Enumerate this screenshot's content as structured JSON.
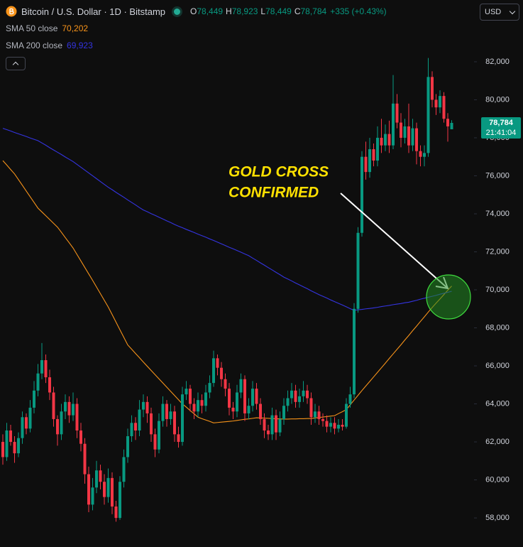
{
  "header": {
    "title": "Bitcoin / U.S. Dollar · 1D · Bitstamp",
    "ohlc": [
      {
        "label": "O",
        "value": "78,449"
      },
      {
        "label": "H",
        "value": "78,923"
      },
      {
        "label": "L",
        "value": "78,449"
      },
      {
        "label": "C",
        "value": "78,784"
      }
    ],
    "change": "+335 (+0.43%)",
    "currency": "USD"
  },
  "chart_data": {
    "type": "candlestick",
    "up_color": "#089981",
    "down_color": "#f23645",
    "ylim": [
      56470,
      85250
    ],
    "yticks": [
      {
        "value": 58000,
        "label": "58,000"
      },
      {
        "value": 60000,
        "label": "60,000"
      },
      {
        "value": 62000,
        "label": "62,000"
      },
      {
        "value": 64000,
        "label": "64,000"
      },
      {
        "value": 66000,
        "label": "66,000"
      },
      {
        "value": 68000,
        "label": "68,000"
      },
      {
        "value": 70000,
        "label": "70,000"
      },
      {
        "value": 72000,
        "label": "72,000"
      },
      {
        "value": 74000,
        "label": "74,000"
      },
      {
        "value": 76000,
        "label": "76,000"
      },
      {
        "value": 78000,
        "label": "78,000"
      },
      {
        "value": 80000,
        "label": "80,000"
      },
      {
        "value": 82000,
        "label": "82,000"
      }
    ],
    "last_price_label": "78,784",
    "countdown": "21:41:04",
    "annotation": [
      "GOLD CROSS",
      "CONFIRMED"
    ],
    "ohlc": [
      [
        62000,
        62400,
        60800,
        61200
      ],
      [
        61200,
        63000,
        61000,
        62600
      ],
      [
        62600,
        62900,
        61800,
        62000
      ],
      [
        62000,
        62300,
        60900,
        61400
      ],
      [
        61400,
        62500,
        61200,
        62200
      ],
      [
        62200,
        63600,
        61900,
        63300
      ],
      [
        63300,
        63500,
        62400,
        62700
      ],
      [
        62700,
        64200,
        62500,
        63800
      ],
      [
        63800,
        65200,
        63500,
        64700
      ],
      [
        64700,
        66100,
        64400,
        65600
      ],
      [
        65600,
        67200,
        65300,
        66300
      ],
      [
        66300,
        66600,
        65100,
        65400
      ],
      [
        65400,
        65800,
        64200,
        64600
      ],
      [
        64600,
        64900,
        62800,
        63200
      ],
      [
        63200,
        63400,
        61800,
        62400
      ],
      [
        62400,
        64000,
        62100,
        63600
      ],
      [
        63600,
        64500,
        63200,
        64100
      ],
      [
        64100,
        64400,
        63000,
        63400
      ],
      [
        63400,
        64600,
        63100,
        64000
      ],
      [
        64000,
        64300,
        62200,
        62600
      ],
      [
        62600,
        63000,
        61500,
        61900
      ],
      [
        61900,
        62200,
        59800,
        60300
      ],
      [
        60300,
        60700,
        58300,
        58700
      ],
      [
        58700,
        60100,
        58400,
        59600
      ],
      [
        59600,
        61000,
        59300,
        60500
      ],
      [
        60500,
        60800,
        59500,
        59900
      ],
      [
        59900,
        60300,
        58700,
        59100
      ],
      [
        59100,
        60600,
        58800,
        60100
      ],
      [
        60100,
        60400,
        58200,
        58600
      ],
      [
        58600,
        58900,
        57800,
        58000
      ],
      [
        58000,
        60200,
        57900,
        59900
      ],
      [
        59900,
        61600,
        59600,
        61200
      ],
      [
        61200,
        62700,
        60900,
        62300
      ],
      [
        62300,
        63400,
        62000,
        63000
      ],
      [
        63000,
        63300,
        62100,
        62600
      ],
      [
        62600,
        64200,
        62300,
        63700
      ],
      [
        63700,
        64500,
        63300,
        64100
      ],
      [
        64100,
        64400,
        63000,
        63500
      ],
      [
        63500,
        63800,
        62000,
        62400
      ],
      [
        62400,
        62700,
        61200,
        61600
      ],
      [
        61600,
        63500,
        61400,
        63100
      ],
      [
        63100,
        64400,
        62800,
        64000
      ],
      [
        64000,
        64200,
        62800,
        63200
      ],
      [
        63200,
        64000,
        62900,
        63600
      ],
      [
        63600,
        63900,
        62000,
        62400
      ],
      [
        62400,
        62800,
        61700,
        62000
      ],
      [
        62000,
        64900,
        61800,
        64500
      ],
      [
        64500,
        65200,
        64200,
        64800
      ],
      [
        64800,
        65000,
        63600,
        64000
      ],
      [
        64000,
        64300,
        63200,
        63600
      ],
      [
        63600,
        64600,
        63300,
        64200
      ],
      [
        64200,
        64500,
        63500,
        63900
      ],
      [
        63900,
        65000,
        63600,
        64600
      ],
      [
        64600,
        65500,
        64300,
        65100
      ],
      [
        65100,
        66800,
        64900,
        66400
      ],
      [
        66400,
        66600,
        65500,
        65900
      ],
      [
        65900,
        66200,
        64900,
        65300
      ],
      [
        65300,
        65600,
        64400,
        64800
      ],
      [
        64800,
        65100,
        63400,
        63800
      ],
      [
        63800,
        64100,
        63200,
        63600
      ],
      [
        63600,
        65000,
        63300,
        64600
      ],
      [
        64600,
        65600,
        64300,
        65300
      ],
      [
        65300,
        65500,
        63100,
        63500
      ],
      [
        63500,
        64300,
        63200,
        63900
      ],
      [
        63900,
        65200,
        63600,
        64800
      ],
      [
        64800,
        65100,
        63700,
        64000
      ],
      [
        64000,
        64300,
        62900,
        63200
      ],
      [
        63200,
        63500,
        62200,
        62600
      ],
      [
        62600,
        62900,
        62100,
        62400
      ],
      [
        62400,
        63800,
        62100,
        63400
      ],
      [
        63400,
        63700,
        62100,
        62500
      ],
      [
        62500,
        63600,
        62300,
        63200
      ],
      [
        63200,
        64300,
        62900,
        63900
      ],
      [
        63900,
        64700,
        63600,
        64300
      ],
      [
        64300,
        65100,
        64000,
        64700
      ],
      [
        64700,
        65000,
        63800,
        64100
      ],
      [
        64100,
        64800,
        63800,
        64400
      ],
      [
        64400,
        65200,
        64100,
        64700
      ],
      [
        64700,
        65000,
        64000,
        64300
      ],
      [
        64300,
        64600,
        62900,
        63300
      ],
      [
        63300,
        64000,
        63000,
        63600
      ],
      [
        63600,
        63900,
        62900,
        63200
      ],
      [
        63200,
        63500,
        62800,
        63100
      ],
      [
        63100,
        63400,
        62500,
        62800
      ],
      [
        62800,
        63300,
        62500,
        63000
      ],
      [
        63000,
        63300,
        62400,
        62700
      ],
      [
        62700,
        63200,
        62500,
        62900
      ],
      [
        62900,
        63200,
        62600,
        62800
      ],
      [
        62800,
        64300,
        62700,
        64000
      ],
      [
        64000,
        64900,
        63800,
        64500
      ],
      [
        64500,
        69300,
        64300,
        69000
      ],
      [
        69000,
        73300,
        68800,
        73000
      ],
      [
        73000,
        77300,
        72800,
        77000
      ],
      [
        77000,
        77800,
        75800,
        76200
      ],
      [
        76200,
        78000,
        75900,
        77400
      ],
      [
        77400,
        77700,
        76500,
        76800
      ],
      [
        76800,
        78600,
        76500,
        78000
      ],
      [
        78000,
        79000,
        77200,
        77600
      ],
      [
        77600,
        78700,
        77300,
        78200
      ],
      [
        78200,
        78900,
        77200,
        77600
      ],
      [
        77600,
        81300,
        77400,
        79800
      ],
      [
        79800,
        80300,
        78500,
        78800
      ],
      [
        78800,
        79300,
        77500,
        78000
      ],
      [
        78000,
        79000,
        77700,
        78600
      ],
      [
        78600,
        79800,
        77200,
        77600
      ],
      [
        77600,
        79000,
        77300,
        78500
      ],
      [
        78500,
        78800,
        76600,
        77300
      ],
      [
        77300,
        77600,
        76500,
        77000
      ],
      [
        77000,
        77600,
        76500,
        77200
      ],
      [
        77200,
        82200,
        77000,
        81200
      ],
      [
        81200,
        81500,
        79600,
        80000
      ],
      [
        80000,
        80300,
        79200,
        79600
      ],
      [
        79600,
        80500,
        79300,
        80200
      ],
      [
        80200,
        80400,
        78800,
        79000
      ],
      [
        79000,
        79300,
        77800,
        78600
      ],
      [
        78449,
        78923,
        78449,
        78784
      ]
    ],
    "series": [
      {
        "name": "SMA 50 close",
        "color": "#f7931a",
        "legend_value": "70,202",
        "values": [
          76800,
          76570,
          76330,
          76100,
          75800,
          75500,
          75200,
          74900,
          74600,
          74300,
          74100,
          73900,
          73700,
          73500,
          73300,
          73030,
          72750,
          72480,
          72200,
          71860,
          71520,
          71180,
          70840,
          70500,
          70150,
          69800,
          69450,
          69100,
          68700,
          68300,
          67900,
          67500,
          67100,
          66880,
          66650,
          66430,
          66200,
          65980,
          65760,
          65540,
          65320,
          65100,
          64880,
          64660,
          64440,
          64220,
          64000,
          63830,
          63650,
          63480,
          63300,
          63220,
          63150,
          63080,
          63000,
          63020,
          63040,
          63060,
          63080,
          63100,
          63130,
          63160,
          63190,
          63210,
          63240,
          63270,
          63260,
          63250,
          63240,
          63230,
          63220,
          63210,
          63200,
          63200,
          63210,
          63210,
          63220,
          63220,
          63230,
          63230,
          63260,
          63280,
          63310,
          63330,
          63360,
          63380,
          63490,
          63590,
          63700,
          63950,
          64200,
          64450,
          64700,
          64940,
          65180,
          65420,
          65660,
          65900,
          66140,
          66390,
          66630,
          66870,
          67110,
          67360,
          67600,
          67850,
          68090,
          68340,
          68580,
          68830,
          69070,
          69300,
          69520,
          69750,
          69980,
          70202
        ]
      },
      {
        "name": "SMA 200 close",
        "color": "#3434e0",
        "legend_value": "69,923",
        "values": [
          78500,
          78430,
          78360,
          78280,
          78210,
          78140,
          78070,
          77990,
          77920,
          77850,
          77730,
          77610,
          77480,
          77360,
          77240,
          77120,
          76990,
          76870,
          76750,
          76600,
          76450,
          76300,
          76150,
          76000,
          75850,
          75700,
          75550,
          75400,
          75270,
          75130,
          75000,
          74870,
          74730,
          74600,
          74470,
          74330,
          74200,
          74110,
          74010,
          73920,
          73820,
          73730,
          73630,
          73540,
          73440,
          73350,
          73270,
          73180,
          73100,
          73020,
          72930,
          72850,
          72770,
          72680,
          72600,
          72510,
          72420,
          72330,
          72240,
          72160,
          72070,
          71980,
          71890,
          71800,
          71670,
          71550,
          71420,
          71300,
          71170,
          71050,
          70920,
          70800,
          70670,
          70570,
          70470,
          70360,
          70260,
          70160,
          70060,
          69950,
          69850,
          69750,
          69660,
          69570,
          69470,
          69380,
          69290,
          69200,
          69110,
          69010,
          68920,
          68950,
          68970,
          69000,
          69020,
          69050,
          69080,
          69120,
          69150,
          69180,
          69220,
          69250,
          69280,
          69320,
          69350,
          69400,
          69450,
          69510,
          69560,
          69610,
          69660,
          69710,
          69770,
          69820,
          69870,
          69923
        ]
      }
    ]
  }
}
